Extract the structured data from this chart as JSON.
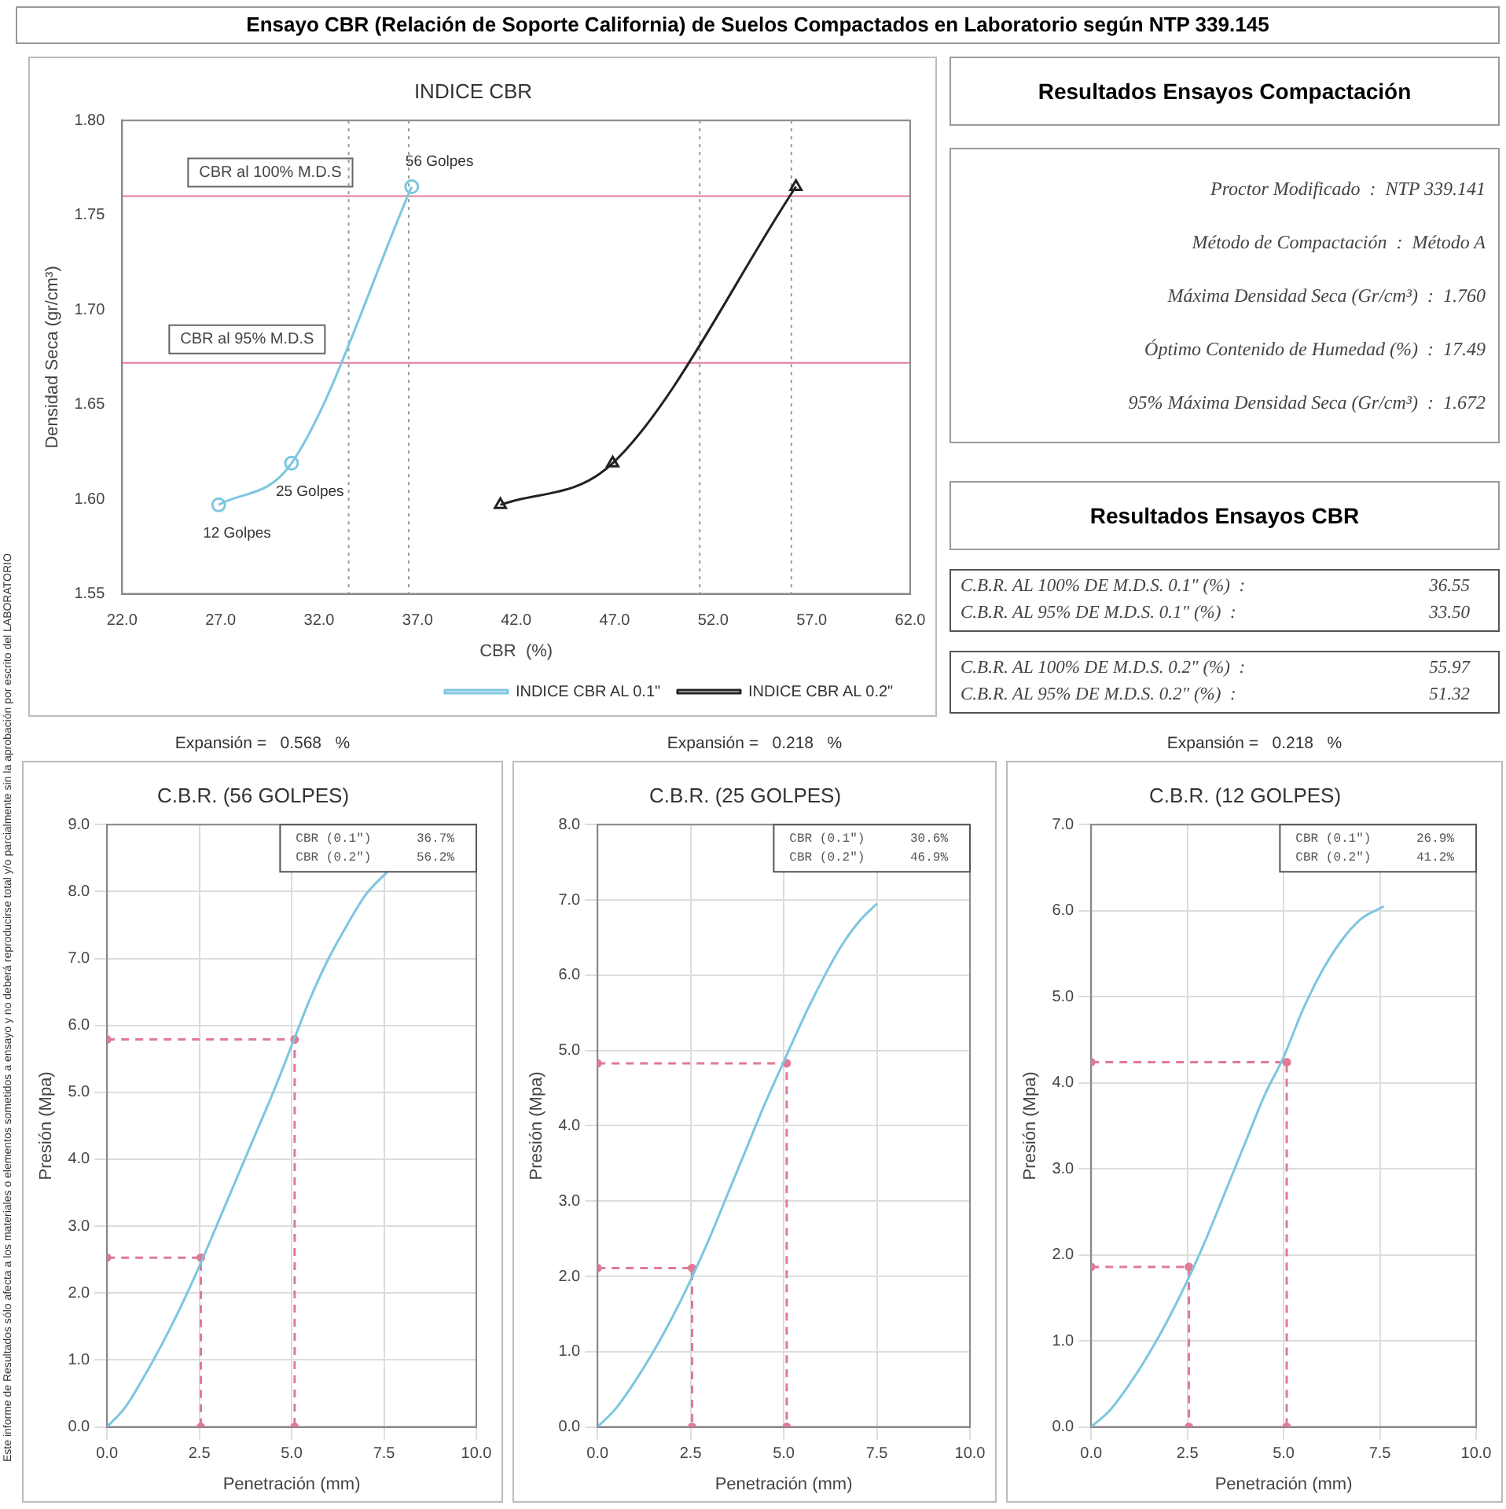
{
  "chart_data": [
    {
      "type": "other",
      "title": "Ensayo CBR (Relación de Soporte California) de Suelos Compactados en Laboratorio según NTP 339.145",
      "annotations": [
        "Este informe de Resultados sólo afecta a los materiales o elementos sometidos a ensayo y no deberá reproducirse total y/o parcialmente sin la aprobación por escrito del LABORATORIO"
      ]
    },
    {
      "type": "line",
      "title": "INDICE CBR",
      "xlabel": "CBR  (%)",
      "ylabel": "Densidad Seca (gr/cm³)",
      "grid": false,
      "legend": "bottom right",
      "xlim": [
        22,
        62
      ],
      "xticks": [
        {
          "value": 22,
          "label": "22.0"
        },
        {
          "value": 27,
          "label": "27.0"
        },
        {
          "value": 32,
          "label": "32.0"
        },
        {
          "value": 37,
          "label": "37.0"
        },
        {
          "value": 42,
          "label": "42.0"
        },
        {
          "value": 47,
          "label": "47.0"
        },
        {
          "value": 52,
          "label": "52.0"
        },
        {
          "value": 57,
          "label": "57.0"
        },
        {
          "value": 62,
          "label": "62.0"
        }
      ],
      "ylim": [
        1.55,
        1.8
      ],
      "yticks": [
        {
          "value": 1.55,
          "label": "1.55"
        },
        {
          "value": 1.6,
          "label": "1.60"
        },
        {
          "value": 1.65,
          "label": "1.65"
        },
        {
          "value": 1.7,
          "label": "1.70"
        },
        {
          "value": 1.75,
          "label": "1.75"
        },
        {
          "value": 1.8,
          "label": "1.80"
        }
      ],
      "series": [
        {
          "name": "INDICE CBR AL 0.1\"",
          "color": "#7cc6e0",
          "marker": "circle",
          "x": [
            26.9,
            30.6,
            36.7
          ],
          "values": [
            1.597,
            1.619,
            1.765
          ]
        },
        {
          "name": "INDICE CBR AL 0.2\"",
          "color": "#222222",
          "marker": "triangle",
          "x": [
            41.2,
            46.9,
            56.2
          ],
          "values": [
            1.597,
            1.619,
            1.765
          ]
        }
      ],
      "ref_lines": [
        {
          "axis": "y",
          "value": 1.76,
          "label": "CBR al 100% M.D.S",
          "color": "#e07a96"
        },
        {
          "axis": "y",
          "value": 1.672,
          "label": "CBR al 95% M.D.S",
          "color": "#e07a96"
        },
        {
          "axis": "x",
          "value": 33.5,
          "color": "#999999",
          "line_style": "dotted"
        },
        {
          "axis": "x",
          "value": 36.55,
          "color": "#999999",
          "line_style": "dotted"
        },
        {
          "axis": "x",
          "value": 51.32,
          "color": "#999999",
          "line_style": "dotted"
        },
        {
          "axis": "x",
          "value": 55.97,
          "color": "#999999",
          "line_style": "dotted"
        }
      ],
      "annotations": [
        {
          "text": "56 Golpes",
          "x": 36.7,
          "y": 1.765
        },
        {
          "text": "25 Golpes",
          "x": 30.6,
          "y": 1.619
        },
        {
          "text": "12 Golpes",
          "x": 26.9,
          "y": 1.597
        }
      ]
    },
    {
      "type": "other",
      "title": "Resultados Ensayos Compactación",
      "annotations": [
        "Proctor Modificado  :  NTP 339.141",
        "Método de Compactación  :  Método A",
        "Máxima Densidad Seca (Gr/cm³)  :  1.760",
        "Óptimo Contenido de Humedad (%)  :  17.49",
        "95% Máxima Densidad Seca (Gr/cm³)  :  1.672"
      ]
    },
    {
      "type": "other",
      "title": "Resultados Ensayos CBR",
      "annotations": [
        "C.B.R. AL 100% DE M.D.S. 0.1\" (%)  :  36.55",
        "C.B.R. AL 95% DE M.D.S. 0.1\" (%)  :  33.50",
        "C.B.R. AL 100% DE M.D.S. 0.2\" (%)  :  55.97",
        "C.B.R. AL 95% DE M.D.S. 0.2\" (%)  :  51.32"
      ]
    },
    {
      "type": "line",
      "title": "C.B.R. (56 GOLPES)",
      "subtitle": "Expansión =   0.568   %",
      "xlabel": "Penetración (mm)",
      "ylabel": "Presión (Mpa)",
      "grid": true,
      "xlim": [
        0,
        10
      ],
      "xticks": [
        {
          "value": 0,
          "label": "0.0"
        },
        {
          "value": 2.5,
          "label": "2.5"
        },
        {
          "value": 5,
          "label": "5.0"
        },
        {
          "value": 7.5,
          "label": "7.5"
        },
        {
          "value": 10,
          "label": "10.0"
        }
      ],
      "ylim": [
        0,
        9
      ],
      "yticks": [
        {
          "value": 0,
          "label": "0.0"
        },
        {
          "value": 1,
          "label": "1.0"
        },
        {
          "value": 2,
          "label": "2.0"
        },
        {
          "value": 3,
          "label": "3.0"
        },
        {
          "value": 4,
          "label": "4.0"
        },
        {
          "value": 5,
          "label": "5.0"
        },
        {
          "value": 6,
          "label": "6.0"
        },
        {
          "value": 7,
          "label": "7.0"
        },
        {
          "value": 8,
          "label": "8.0"
        },
        {
          "value": 9,
          "label": "9.0"
        }
      ],
      "series": [
        {
          "color": "#7cc6e0",
          "marker": "none",
          "x": [
            0,
            0.5,
            1,
            1.5,
            2,
            2.5,
            3,
            3.5,
            4,
            4.5,
            5,
            5.5,
            6,
            6.5,
            7,
            7.6
          ],
          "values": [
            0,
            0.3,
            0.75,
            1.25,
            1.8,
            2.4,
            3.05,
            3.7,
            4.35,
            5,
            5.7,
            6.4,
            7,
            7.5,
            7.95,
            8.3
          ]
        },
        {
          "color": "#e07a96",
          "marker": "circle",
          "line_style": "dashed",
          "x": [
            0,
            2.54,
            2.54
          ],
          "values": [
            2.53,
            2.53,
            0
          ]
        },
        {
          "color": "#e07a96",
          "marker": "circle",
          "line_style": "dashed",
          "x": [
            0,
            5.08,
            5.08
          ],
          "values": [
            5.79,
            5.79,
            0
          ]
        }
      ],
      "annotations": [
        "CBR (0.1\")      36.7%",
        "CBR (0.2\")      56.2%"
      ]
    },
    {
      "type": "line",
      "title": "C.B.R. (25 GOLPES)",
      "subtitle": "Expansión =   0.218   %",
      "xlabel": "Penetración (mm)",
      "ylabel": "Presión (Mpa)",
      "grid": true,
      "xlim": [
        0,
        10
      ],
      "xticks": [
        {
          "value": 0,
          "label": "0.0"
        },
        {
          "value": 2.5,
          "label": "2.5"
        },
        {
          "value": 5,
          "label": "5.0"
        },
        {
          "value": 7.5,
          "label": "7.5"
        },
        {
          "value": 10,
          "label": "10.0"
        }
      ],
      "ylim": [
        0,
        8
      ],
      "yticks": [
        {
          "value": 0,
          "label": "0.0"
        },
        {
          "value": 1,
          "label": "1.0"
        },
        {
          "value": 2,
          "label": "2.0"
        },
        {
          "value": 3,
          "label": "3.0"
        },
        {
          "value": 4,
          "label": "4.0"
        },
        {
          "value": 5,
          "label": "5.0"
        },
        {
          "value": 6,
          "label": "6.0"
        },
        {
          "value": 7,
          "label": "7.0"
        },
        {
          "value": 8,
          "label": "8.0"
        }
      ],
      "series": [
        {
          "color": "#7cc6e0",
          "marker": "none",
          "x": [
            0,
            0.5,
            1,
            1.5,
            2,
            2.5,
            3,
            3.5,
            4,
            4.5,
            5,
            5.5,
            6,
            6.5,
            7,
            7.5
          ],
          "values": [
            0,
            0.25,
            0.6,
            1,
            1.45,
            1.95,
            2.5,
            3.1,
            3.7,
            4.3,
            4.85,
            5.4,
            5.9,
            6.35,
            6.7,
            6.95
          ]
        },
        {
          "color": "#e07a96",
          "marker": "circle",
          "line_style": "dashed",
          "x": [
            0,
            2.54,
            2.54
          ],
          "values": [
            2.11,
            2.11,
            0
          ]
        },
        {
          "color": "#e07a96",
          "marker": "circle",
          "line_style": "dashed",
          "x": [
            0,
            5.08,
            5.08
          ],
          "values": [
            4.83,
            4.83,
            0
          ]
        }
      ],
      "annotations": [
        "CBR (0.1\")      30.6%",
        "CBR (0.2\")      46.9%"
      ]
    },
    {
      "type": "line",
      "title": "C.B.R. (12 GOLPES)",
      "subtitle": "Expansión =   0.218   %",
      "xlabel": "Penetración (mm)",
      "ylabel": "Presión (Mpa)",
      "grid": true,
      "xlim": [
        0,
        10
      ],
      "xticks": [
        {
          "value": 0,
          "label": "0.0"
        },
        {
          "value": 2.5,
          "label": "2.5"
        },
        {
          "value": 5,
          "label": "5.0"
        },
        {
          "value": 7.5,
          "label": "7.5"
        },
        {
          "value": 10,
          "label": "10.0"
        }
      ],
      "ylim": [
        0,
        7
      ],
      "yticks": [
        {
          "value": 0,
          "label": "0.0"
        },
        {
          "value": 1,
          "label": "1.0"
        },
        {
          "value": 2,
          "label": "2.0"
        },
        {
          "value": 3,
          "label": "3.0"
        },
        {
          "value": 4,
          "label": "4.0"
        },
        {
          "value": 5,
          "label": "5.0"
        },
        {
          "value": 6,
          "label": "6.0"
        },
        {
          "value": 7,
          "label": "7.0"
        }
      ],
      "series": [
        {
          "color": "#7cc6e0",
          "marker": "none",
          "x": [
            0,
            0.5,
            1,
            1.5,
            2,
            2.5,
            3,
            3.5,
            4,
            4.5,
            5,
            5.5,
            6,
            6.5,
            7,
            7.6
          ],
          "values": [
            0,
            0.2,
            0.5,
            0.85,
            1.25,
            1.7,
            2.2,
            2.75,
            3.3,
            3.85,
            4.3,
            4.85,
            5.3,
            5.65,
            5.9,
            6.05
          ]
        },
        {
          "color": "#e07a96",
          "marker": "circle",
          "line_style": "dashed",
          "x": [
            0,
            2.54,
            2.54
          ],
          "values": [
            1.86,
            1.86,
            0
          ]
        },
        {
          "color": "#e07a96",
          "marker": "circle",
          "line_style": "dashed",
          "x": [
            0,
            5.08,
            5.08
          ],
          "values": [
            4.24,
            4.24,
            0
          ]
        }
      ],
      "annotations": [
        "CBR (0.1\")      26.9%",
        "CBR (0.2\")      41.2%"
      ]
    }
  ]
}
